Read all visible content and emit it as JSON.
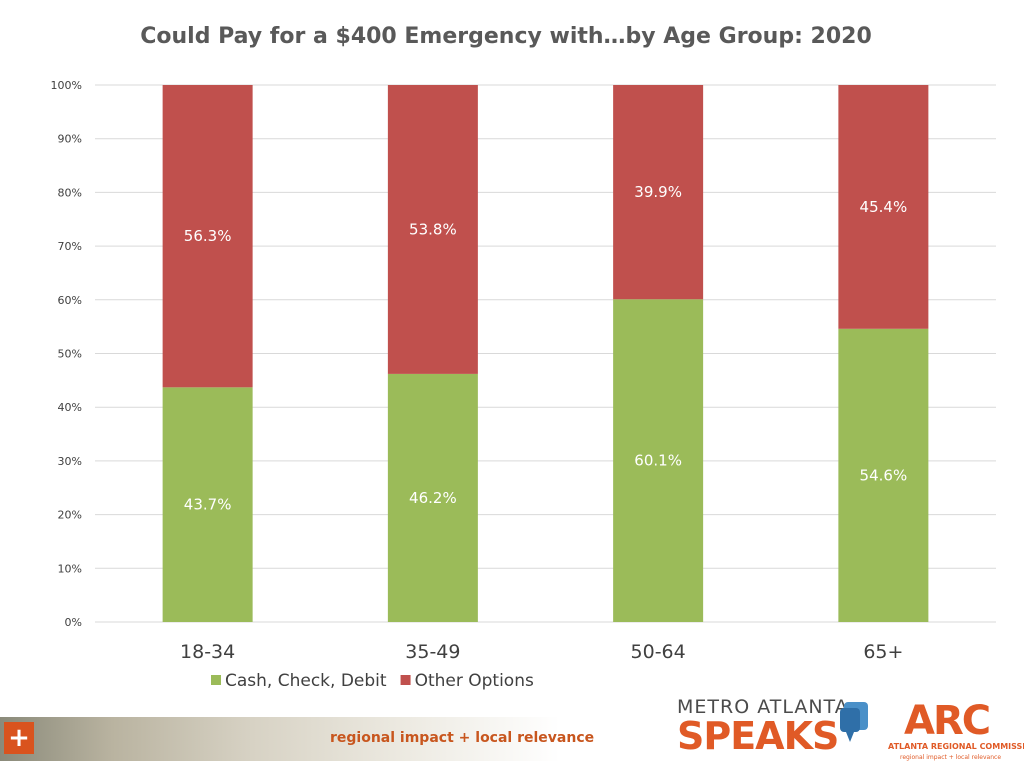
{
  "chart_data": {
    "type": "bar",
    "stacked": true,
    "title": "Could Pay for a $400 Emergency with…by Age Group: 2020",
    "categories": [
      "18-34",
      "35-49",
      "50-64",
      "65+"
    ],
    "series": [
      {
        "name": "Cash, Check, Debit",
        "color": "#9bbb59",
        "values": [
          43.7,
          46.2,
          60.1,
          54.6
        ],
        "labels": [
          "43.7%",
          "46.2%",
          "60.1%",
          "54.6%"
        ]
      },
      {
        "name": "Other Options",
        "color": "#c0504d",
        "values": [
          56.3,
          53.8,
          39.9,
          45.4
        ],
        "labels": [
          "56.3%",
          "53.8%",
          "39.9%",
          "45.4%"
        ]
      }
    ],
    "ylim": [
      0,
      100
    ],
    "yticks": [
      0,
      10,
      20,
      30,
      40,
      50,
      60,
      70,
      80,
      90,
      100
    ],
    "ytick_labels": [
      "0%",
      "10%",
      "20%",
      "30%",
      "40%",
      "50%",
      "60%",
      "70%",
      "80%",
      "90%",
      "100%"
    ],
    "grid": true,
    "legend_position": "bottom"
  },
  "footer": {
    "plus": "+",
    "tagline_left": "regional impact",
    "tagline_plus": "+",
    "tagline_right": "local relevance",
    "logo1_top": "METRO ATLANTA",
    "logo1_bottom": "SPEAKS",
    "logo2_mark": "ARC",
    "logo2_name": "ATLANTA REGIONAL COMMISSION",
    "logo2_tag": "regional impact + local relevance"
  }
}
